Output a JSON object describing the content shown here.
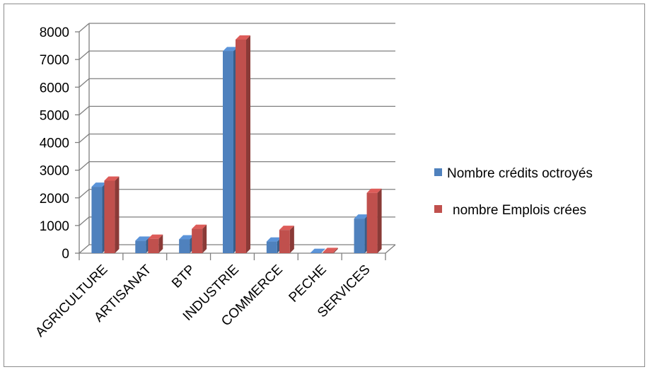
{
  "chart_data": {
    "type": "bar",
    "title": "",
    "xlabel": "",
    "ylabel": "",
    "categories": [
      "AGRICULTURE",
      "ARTISANAT",
      "BTP",
      "INDUSTRIE",
      "COMMERCE",
      "PECHE",
      "SERVICES"
    ],
    "series": [
      {
        "name": "Nombre crédits octroyés",
        "color": "#4f81bd",
        "values": [
          2400,
          450,
          500,
          7300,
          420,
          10,
          1250
        ]
      },
      {
        "name": "nombre Emplois crées",
        "color": "#c0504d",
        "values": [
          2620,
          520,
          880,
          7720,
          840,
          40,
          2180
        ]
      }
    ],
    "ylim": [
      0,
      8000
    ],
    "yticks": [
      0,
      1000,
      2000,
      3000,
      4000,
      5000,
      6000,
      7000,
      8000
    ],
    "grid": true,
    "legend_position": "right",
    "style": "3d-clustered-column"
  }
}
